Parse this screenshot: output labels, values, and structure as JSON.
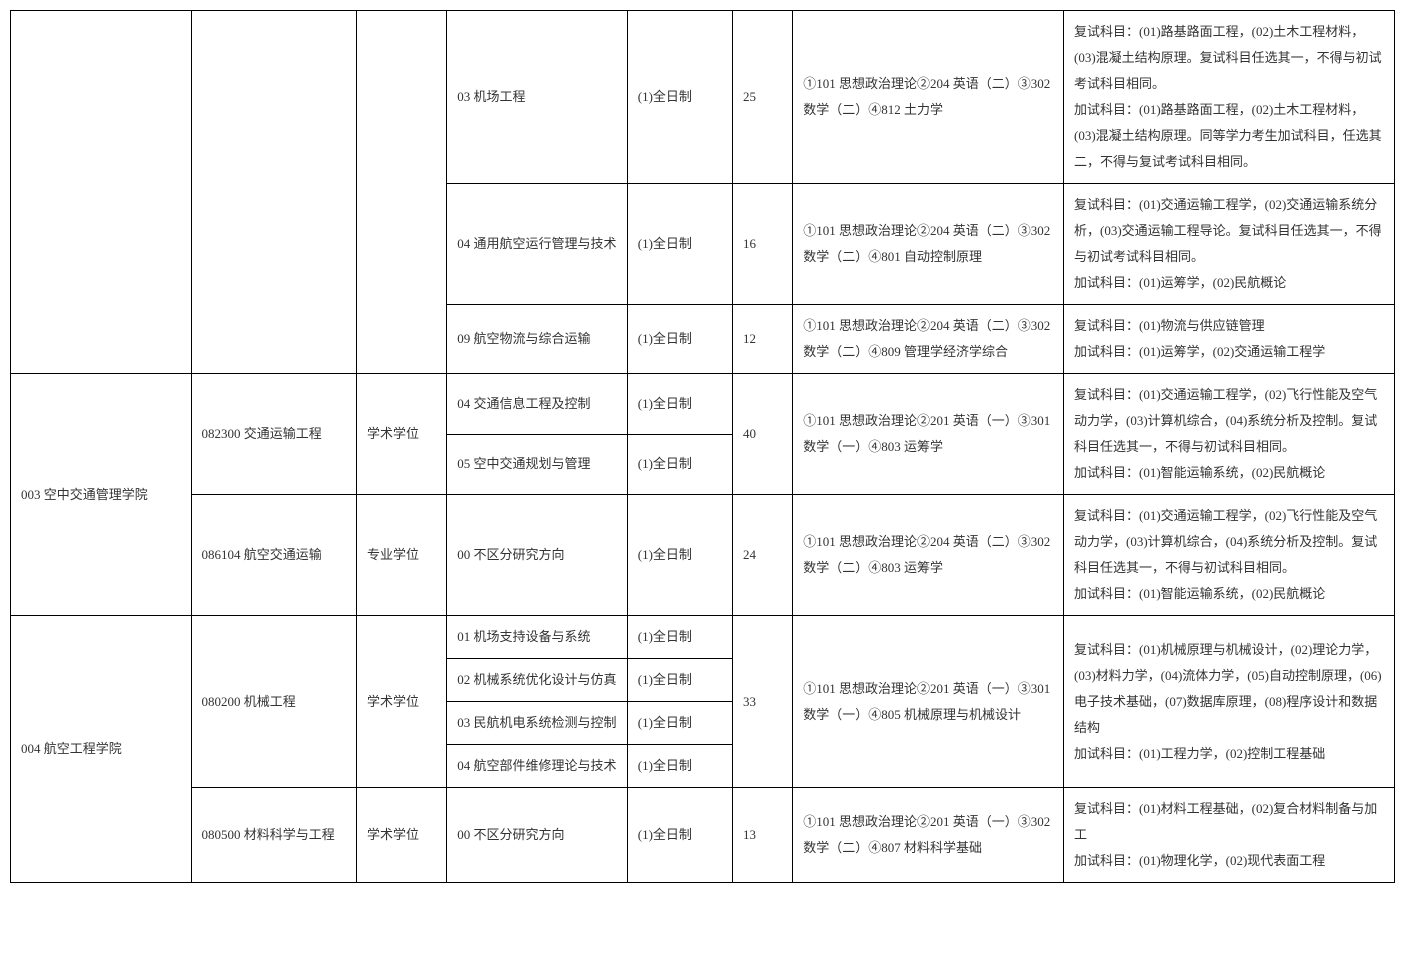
{
  "rows": [
    {
      "dept": "",
      "major": "",
      "degree": "",
      "direction": "03 机场工程",
      "type": "(1)全日制",
      "count": "25",
      "exam": "①101 思想政治理论②204 英语（二）③302数学（二）④812 土力学",
      "notes": "复试科目：(01)路基路面工程，(02)土木工程材料，(03)混凝土结构原理。复试科目任选其一，不得与初试考试科目相同。\n加试科目：(01)路基路面工程，(02)土木工程材料，(03)混凝土结构原理。同等学力考生加试科目，任选其二，不得与复试考试科目相同。"
    },
    {
      "direction": "04 通用航空运行管理与技术",
      "type": "(1)全日制",
      "count": "16",
      "exam": "①101 思想政治理论②204 英语（二）③302数学（二）④801 自动控制原理",
      "notes": "复试科目：(01)交通运输工程学，(02)交通运输系统分析，(03)交通运输工程导论。复试科目任选其一，不得与初试考试科目相同。\n加试科目：(01)运筹学，(02)民航概论"
    },
    {
      "direction": "09 航空物流与综合运输",
      "type": "(1)全日制",
      "count": "12",
      "exam": "①101 思想政治理论②204 英语（二）③302数学（二）④809 管理学经济学综合",
      "notes": "复试科目：(01)物流与供应链管理\n加试科目：(01)运筹学，(02)交通运输工程学"
    },
    {
      "dept": "003 空中交通管理学院",
      "major": "082300 交通运输工程",
      "degree": "学术学位",
      "direction": "04 交通信息工程及控制",
      "type": "(1)全日制",
      "count": "40",
      "exam": "①101 思想政治理论②201 英语（一）③301数学（一）④803 运筹学",
      "notes": "复试科目：(01)交通运输工程学，(02)飞行性能及空气动力学，(03)计算机综合，(04)系统分析及控制。复试科目任选其一，不得与初试科目相同。\n加试科目：(01)智能运输系统，(02)民航概论"
    },
    {
      "direction": "05 空中交通规划与管理",
      "type": "(1)全日制"
    },
    {
      "major": "086104 航空交通运输",
      "degree": "专业学位",
      "direction": "00 不区分研究方向",
      "type": "(1)全日制",
      "count": "24",
      "exam": "①101 思想政治理论②204 英语（二）③302数学（二）④803 运筹学",
      "notes": "复试科目：(01)交通运输工程学，(02)飞行性能及空气动力学，(03)计算机综合，(04)系统分析及控制。复试科目任选其一，不得与初试科目相同。\n加试科目：(01)智能运输系统，(02)民航概论"
    },
    {
      "dept": "004 航空工程学院",
      "major": "080200 机械工程",
      "degree": "学术学位",
      "direction": "01 机场支持设备与系统",
      "type": "(1)全日制",
      "count": "33",
      "exam": "①101 思想政治理论②201 英语（一）③301数学（一）④805 机械原理与机械设计",
      "notes": "复试科目：(01)机械原理与机械设计，(02)理论力学，(03)材料力学，(04)流体力学，(05)自动控制原理，(06)电子技术基础，(07)数据库原理，(08)程序设计和数据结构\n加试科目：(01)工程力学，(02)控制工程基础"
    },
    {
      "direction": "02 机械系统优化设计与仿真",
      "type": "(1)全日制"
    },
    {
      "direction": "03 民航机电系统检测与控制",
      "type": "(1)全日制"
    },
    {
      "direction": "04 航空部件维修理论与技术",
      "type": "(1)全日制"
    },
    {
      "major": "080500 材料科学与工程",
      "degree": "学术学位",
      "direction": "00 不区分研究方向",
      "type": "(1)全日制",
      "count": "13",
      "exam": "①101 思想政治理论②201 英语（一）③302数学（二）④807 材料科学基础",
      "notes": "复试科目：(01)材料工程基础，(02)复合材料制备与加工\n加试科目：(01)物理化学，(02)现代表面工程"
    }
  ]
}
